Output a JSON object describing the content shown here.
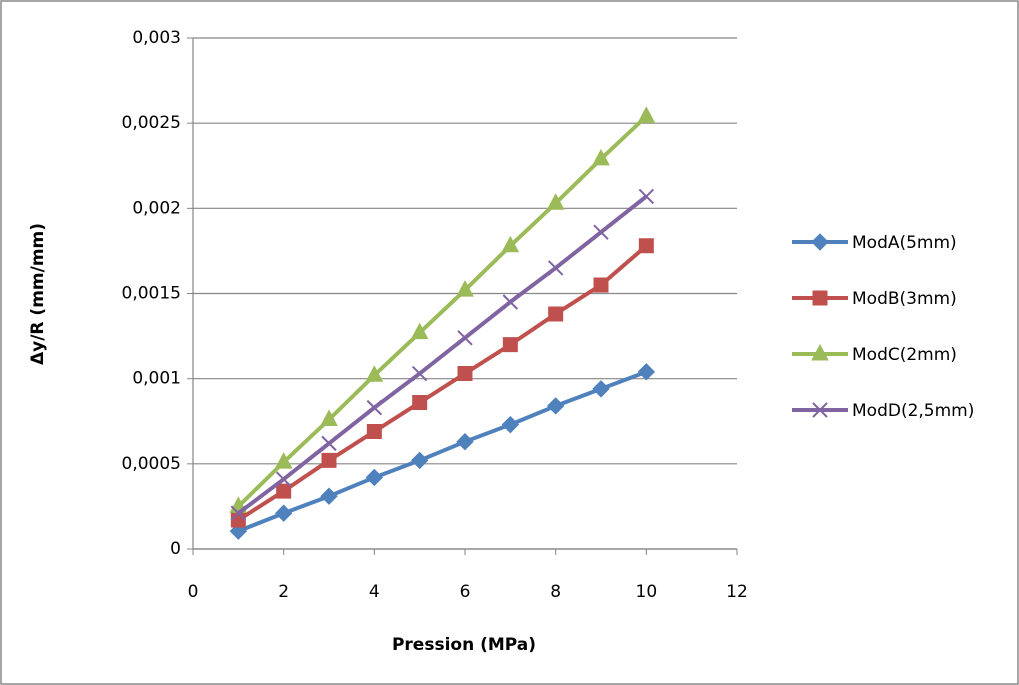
{
  "chart_data": {
    "type": "line",
    "x_label": "Pression (MPa)",
    "y_label": "Δy/R (mm/mm)",
    "x": [
      1,
      2,
      3,
      4,
      5,
      6,
      7,
      8,
      9,
      10
    ],
    "xlim": [
      0,
      12
    ],
    "xticks": [
      0,
      2,
      4,
      6,
      8,
      10,
      12
    ],
    "ylim": [
      0,
      0.003
    ],
    "yticks": [
      {
        "value": 0,
        "label": "0"
      },
      {
        "value": 0.0005,
        "label": "0,0005"
      },
      {
        "value": 0.001,
        "label": "0,001"
      },
      {
        "value": 0.0015,
        "label": "0,0015"
      },
      {
        "value": 0.002,
        "label": "0,002"
      },
      {
        "value": 0.0025,
        "label": "0,0025"
      },
      {
        "value": 0.003,
        "label": "0,003"
      }
    ],
    "grid": true,
    "legend": "right",
    "series": [
      {
        "name": "ModA(5mm)",
        "color": "#4f81bd",
        "marker": "diamond",
        "values": [
          0.000105,
          0.00021,
          0.00031,
          0.00042,
          0.00052,
          0.00063,
          0.00073,
          0.00084,
          0.00094,
          0.00104
        ]
      },
      {
        "name": "ModB(3mm)",
        "color": "#c0504d",
        "marker": "square",
        "values": [
          0.00017,
          0.00034,
          0.00052,
          0.00069,
          0.00086,
          0.00103,
          0.0012,
          0.00138,
          0.00155,
          0.00178
        ]
      },
      {
        "name": "ModC(2mm)",
        "color": "#9bbb59",
        "marker": "triangle",
        "values": [
          0.00025,
          0.00051,
          0.00076,
          0.00102,
          0.00127,
          0.00152,
          0.00178,
          0.00203,
          0.00229,
          0.00254
        ]
      },
      {
        "name": "ModD(2,5mm)",
        "color": "#8064a2",
        "marker": "x",
        "values": [
          0.00021,
          0.00041,
          0.00062,
          0.00083,
          0.00103,
          0.00124,
          0.00145,
          0.00165,
          0.00186,
          0.00207
        ]
      }
    ]
  }
}
